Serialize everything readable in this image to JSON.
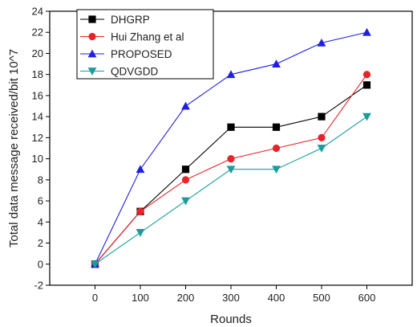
{
  "chart_data": {
    "type": "line",
    "title": "",
    "xlabel": "Rounds",
    "ylabel": "Total data message received/bit 10^7",
    "x": [
      0,
      100,
      200,
      300,
      400,
      500,
      600
    ],
    "xlim": [
      -100,
      700
    ],
    "ylim": [
      -2,
      24
    ],
    "xticks": [
      0,
      100,
      200,
      300,
      400,
      500,
      600
    ],
    "yticks": [
      -2,
      0,
      2,
      4,
      6,
      8,
      10,
      12,
      14,
      16,
      18,
      20,
      22,
      24
    ],
    "grid": false,
    "legend_position": "top-left",
    "series": [
      {
        "name": "DHGRP",
        "values": [
          0,
          5,
          9,
          13,
          13,
          14,
          17
        ],
        "color": "#000000",
        "marker": "square"
      },
      {
        "name": "Hui Zhang et al",
        "values": [
          0,
          5,
          8,
          10,
          11,
          12,
          18
        ],
        "color": "#e8232a",
        "marker": "circle"
      },
      {
        "name": "PROPOSED",
        "values": [
          0,
          9,
          15,
          18,
          19,
          21,
          22
        ],
        "color": "#1f1fe6",
        "marker": "triangle-up"
      },
      {
        "name": "QDVGDD",
        "values": [
          0,
          3,
          6,
          9,
          9,
          11,
          14
        ],
        "color": "#1a9c9c",
        "marker": "triangle-down"
      }
    ]
  }
}
